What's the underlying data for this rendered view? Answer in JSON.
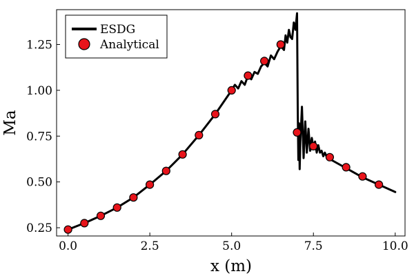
{
  "chart_data": {
    "type": "line",
    "title": "",
    "xlabel": "x (m)",
    "ylabel": "Ma",
    "xlim": [
      -0.35,
      10.3
    ],
    "ylim": [
      0.205,
      1.44
    ],
    "xticks": [
      0.0,
      2.5,
      5.0,
      7.5,
      10.0
    ],
    "xtick_labels": [
      "0.0",
      "2.5",
      "5.0",
      "7.5",
      "10.0"
    ],
    "yticks": [
      0.25,
      0.5,
      0.75,
      1.0,
      1.25
    ],
    "ytick_labels": [
      "0.25",
      "0.50",
      "0.75",
      "1.00",
      "1.25"
    ],
    "grid": false,
    "legend_position": "top-left",
    "colors": {
      "esdg": "#000000",
      "analytical_fill": "#e8141b",
      "analytical_edge": "#000000"
    },
    "series": [
      {
        "name": "ESDG",
        "style": "line",
        "x": [
          0.0,
          0.5,
          1.0,
          1.5,
          2.0,
          2.5,
          3.0,
          3.5,
          4.0,
          4.5,
          5.0,
          5.1,
          5.2,
          5.3,
          5.4,
          5.5,
          5.6,
          5.7,
          5.8,
          5.9,
          6.0,
          6.1,
          6.2,
          6.3,
          6.4,
          6.5,
          6.6,
          6.65,
          6.7,
          6.75,
          6.8,
          6.85,
          6.9,
          6.95,
          7.0,
          7.02,
          7.04,
          7.06,
          7.08,
          7.1,
          7.15,
          7.2,
          7.25,
          7.3,
          7.35,
          7.4,
          7.45,
          7.5,
          7.55,
          7.6,
          7.65,
          7.7,
          7.75,
          7.8,
          7.85,
          7.9,
          8.0,
          8.5,
          9.0,
          9.5,
          10.0
        ],
        "values": [
          0.24,
          0.275,
          0.315,
          0.36,
          0.415,
          0.485,
          0.56,
          0.65,
          0.755,
          0.87,
          1.0,
          1.03,
          1.01,
          1.05,
          1.03,
          1.08,
          1.06,
          1.1,
          1.09,
          1.13,
          1.15,
          1.13,
          1.19,
          1.17,
          1.21,
          1.24,
          1.22,
          1.3,
          1.26,
          1.33,
          1.29,
          1.28,
          1.37,
          1.33,
          1.42,
          0.9,
          0.62,
          0.82,
          0.57,
          0.72,
          0.91,
          0.63,
          0.83,
          0.66,
          0.79,
          0.67,
          0.74,
          0.69,
          0.72,
          0.66,
          0.7,
          0.66,
          0.67,
          0.64,
          0.66,
          0.64,
          0.625,
          0.575,
          0.525,
          0.485,
          0.445
        ]
      },
      {
        "name": "Analytical",
        "style": "scatter",
        "x": [
          0.0,
          0.5,
          1.0,
          1.5,
          2.0,
          2.5,
          3.0,
          3.5,
          4.0,
          4.5,
          5.0,
          5.5,
          6.0,
          6.5,
          7.0,
          7.5,
          8.0,
          8.5,
          9.0,
          9.5
        ],
        "values": [
          0.24,
          0.275,
          0.315,
          0.36,
          0.415,
          0.485,
          0.56,
          0.65,
          0.755,
          0.87,
          1.0,
          1.08,
          1.16,
          1.25,
          0.77,
          0.695,
          0.635,
          0.58,
          0.53,
          0.485
        ]
      }
    ]
  }
}
